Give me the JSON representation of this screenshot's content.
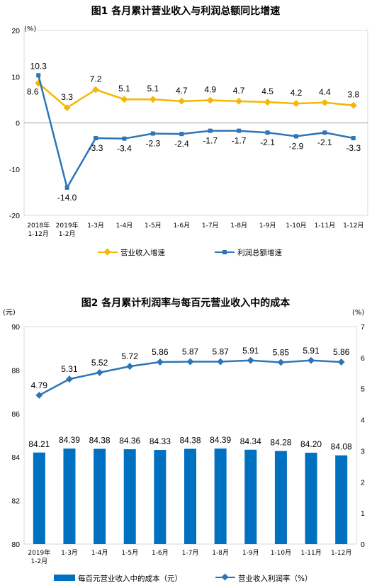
{
  "chart_data": [
    {
      "type": "line",
      "title": "图1  各月累计营业收入与利润总额同比增速",
      "unit_label": "(%)",
      "categories": [
        "2018年\n1-12月",
        "2019年\n1-2月",
        "1-3月",
        "1-4月",
        "1-5月",
        "1-6月",
        "1-7月",
        "1-8月",
        "1-9月",
        "1-10月",
        "1-11月",
        "1-12月"
      ],
      "ylim": [
        -20,
        20
      ],
      "yticks": [
        -20,
        -10,
        0,
        10,
        20
      ],
      "series": [
        {
          "name": "营业收入增速",
          "color": "#F5B800",
          "marker": "diamond",
          "values": [
            8.6,
            3.3,
            7.2,
            5.1,
            5.1,
            4.7,
            4.9,
            4.7,
            4.5,
            4.2,
            4.4,
            3.8
          ],
          "labels": [
            "8.6",
            "3.3",
            "7.2",
            "5.1",
            "5.1",
            "4.7",
            "4.9",
            "4.7",
            "4.5",
            "4.2",
            "4.4",
            "3.8"
          ]
        },
        {
          "name": "利润总额增速",
          "color": "#2E75B6",
          "marker": "square",
          "values": [
            10.3,
            -14.0,
            -3.3,
            -3.4,
            -2.3,
            -2.4,
            -1.7,
            -1.7,
            -2.1,
            -2.9,
            -2.1,
            -3.3
          ],
          "labels": [
            "10.3",
            "-14.0",
            "-3.3",
            "-3.4",
            "-2.3",
            "-2.4",
            "-1.7",
            "-1.7",
            "-2.1",
            "-2.9",
            "-2.1",
            "-3.3"
          ]
        }
      ],
      "legend_position": "bottom"
    },
    {
      "type": "bar",
      "title": "图2  各月累计利润率与每百元营业收入中的成本",
      "left_unit_label": "(元)",
      "right_unit_label": "(%)",
      "categories": [
        "2019年\n1-2月",
        "1-3月",
        "1-4月",
        "1-5月",
        "1-6月",
        "1-7月",
        "1-8月",
        "1-9月",
        "1-10月",
        "1-11月",
        "1-12月"
      ],
      "ylim_left": [
        80,
        90
      ],
      "yticks_left": [
        80,
        82,
        84,
        86,
        88,
        90
      ],
      "ylim_right": [
        0,
        7
      ],
      "yticks_right": [
        0,
        1,
        2,
        3,
        4,
        5,
        6,
        7
      ],
      "bar_series": {
        "name": "每百元营业收入中的成本（元）",
        "color": "#0070C0",
        "values": [
          84.21,
          84.39,
          84.38,
          84.36,
          84.33,
          84.38,
          84.39,
          84.34,
          84.28,
          84.2,
          84.08
        ],
        "labels": [
          "84.21",
          "84.39",
          "84.38",
          "84.36",
          "84.33",
          "84.38",
          "84.39",
          "84.34",
          "84.28",
          "84.20",
          "84.08"
        ]
      },
      "line_series": {
        "name": "营业收入利润率（%）",
        "color": "#2E75B6",
        "marker": "diamond",
        "values": [
          4.79,
          5.31,
          5.52,
          5.72,
          5.86,
          5.87,
          5.87,
          5.91,
          5.85,
          5.91,
          5.86
        ],
        "labels": [
          "4.79",
          "5.31",
          "5.52",
          "5.72",
          "5.86",
          "5.87",
          "5.87",
          "5.91",
          "5.85",
          "5.91",
          "5.86"
        ]
      },
      "legend_position": "bottom"
    }
  ]
}
